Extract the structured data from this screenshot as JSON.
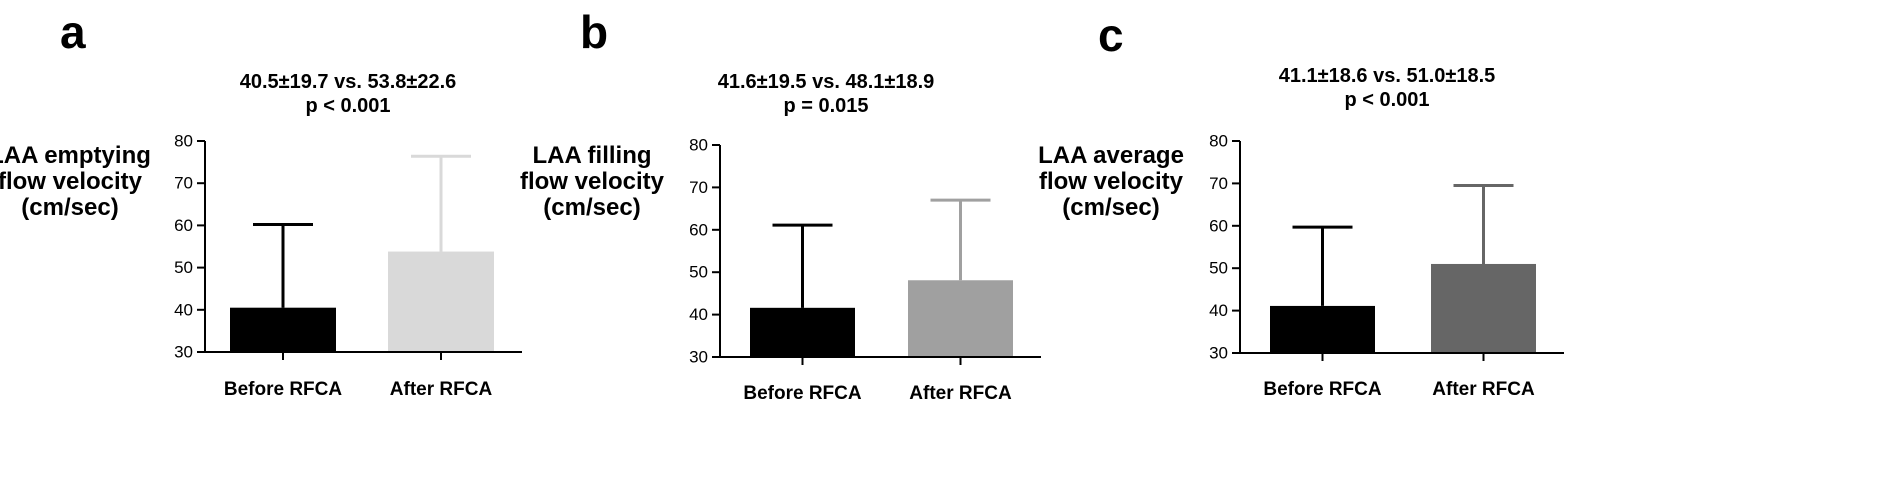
{
  "chart_data": [
    {
      "type": "bar",
      "panel": "a",
      "stat_line1": "40.5±19.7 vs. 53.8±22.6",
      "stat_line2": "p < 0.001",
      "ylabel_lines": [
        "LAA emptying",
        "flow velocity",
        "(cm/sec)"
      ],
      "categories": [
        "Before RFCA",
        "After RFCA"
      ],
      "values": [
        40.5,
        53.8
      ],
      "errors": [
        19.7,
        22.6
      ],
      "colors": [
        "#000000",
        "#d9d9d9"
      ],
      "ylim": [
        30,
        80
      ],
      "yticks": [
        30,
        40,
        50,
        60,
        70,
        80
      ]
    },
    {
      "type": "bar",
      "panel": "b",
      "stat_line1": "41.6±19.5 vs. 48.1±18.9",
      "stat_line2": "p = 0.015",
      "ylabel_lines": [
        "LAA filling",
        "flow velocity",
        "(cm/sec)"
      ],
      "categories": [
        "Before RFCA",
        "After RFCA"
      ],
      "values": [
        41.6,
        48.1
      ],
      "errors": [
        19.5,
        18.9
      ],
      "colors": [
        "#000000",
        "#a0a0a0"
      ],
      "ylim": [
        30,
        80
      ],
      "yticks": [
        30,
        40,
        50,
        60,
        70,
        80
      ]
    },
    {
      "type": "bar",
      "panel": "c",
      "stat_line1": "41.1±18.6 vs. 51.0±18.5",
      "stat_line2": "p < 0.001",
      "ylabel_lines": [
        "LAA average",
        "flow velocity",
        "(cm/sec)"
      ],
      "categories": [
        "Before RFCA",
        "After RFCA"
      ],
      "values": [
        41.1,
        51.0
      ],
      "errors": [
        18.6,
        18.5
      ],
      "colors": [
        "#000000",
        "#666666"
      ],
      "ylim": [
        30,
        80
      ],
      "yticks": [
        30,
        40,
        50,
        60,
        70,
        80
      ]
    }
  ]
}
